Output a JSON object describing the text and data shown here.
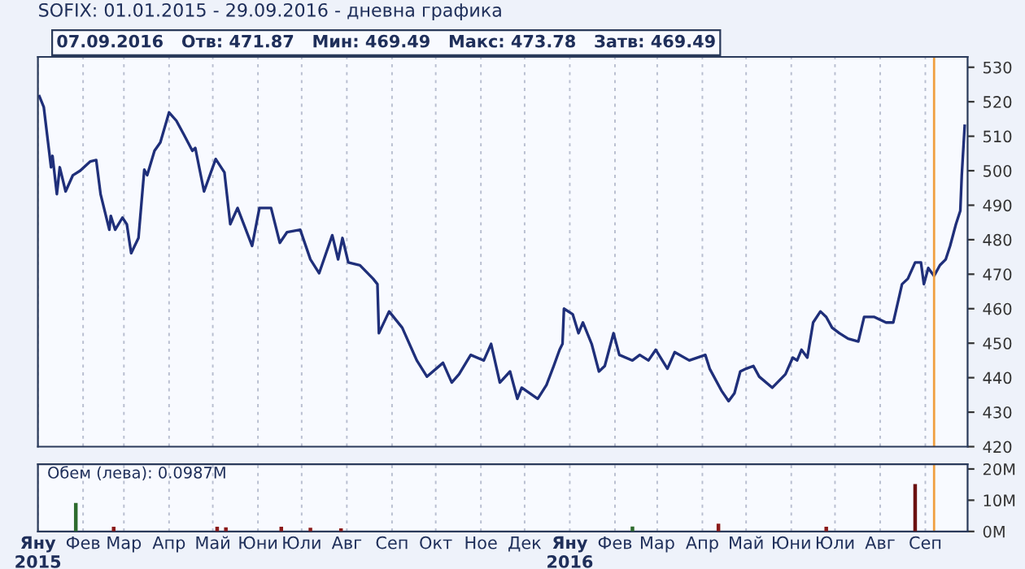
{
  "chart_data": [
    {
      "type": "line",
      "title": "SOFIX: 01.01.2015 - 29.09.2016 - дневна графика",
      "annotations": [
        "07.09.2016   Отв: 471.87   Мин: 469.49   Макс: 473.78   Затв: 469.49"
      ],
      "x": [
        "2015-01-02",
        "2015-01-05",
        "2015-01-10",
        "2015-01-11",
        "2015-01-14",
        "2015-01-16",
        "2015-01-20",
        "2015-01-25",
        "2015-01-30",
        "2015-02-06",
        "2015-02-10",
        "2015-02-13",
        "2015-02-19",
        "2015-02-20",
        "2015-02-23",
        "2015-02-28",
        "2015-03-03",
        "2015-03-06",
        "2015-03-11",
        "2015-03-15",
        "2015-03-17",
        "2015-03-22",
        "2015-03-26",
        "2015-04-01",
        "2015-04-06",
        "2015-04-11",
        "2015-04-17",
        "2015-04-19",
        "2015-04-25",
        "2015-05-03",
        "2015-05-09",
        "2015-05-13",
        "2015-05-18",
        "2015-05-28",
        "2015-06-02",
        "2015-06-10",
        "2015-06-16",
        "2015-06-21",
        "2015-06-30",
        "2015-07-07",
        "2015-07-13",
        "2015-07-22",
        "2015-07-26",
        "2015-07-29",
        "2015-08-02",
        "2015-08-10",
        "2015-08-19",
        "2015-08-22",
        "2015-08-23",
        "2015-08-30",
        "2015-09-08",
        "2015-09-18",
        "2015-09-25",
        "2015-10-06",
        "2015-10-12",
        "2015-10-17",
        "2015-10-25",
        "2015-11-03",
        "2015-11-08",
        "2015-11-14",
        "2015-11-21",
        "2015-11-26",
        "2015-11-29",
        "2015-12-10",
        "2015-12-16",
        "2015-12-21",
        "2015-12-25",
        "2015-12-27",
        "2015-12-28",
        "2016-01-03",
        "2016-01-07",
        "2016-01-10",
        "2016-01-16",
        "2016-01-21",
        "2016-01-25",
        "2016-01-31",
        "2016-02-04",
        "2016-02-13",
        "2016-02-18",
        "2016-02-24",
        "2016-02-29",
        "2016-03-08",
        "2016-03-13",
        "2016-03-23",
        "2016-04-03",
        "2016-04-06",
        "2016-04-14",
        "2016-04-19",
        "2016-04-23",
        "2016-04-27",
        "2016-05-01",
        "2016-05-06",
        "2016-05-10",
        "2016-05-19",
        "2016-05-28",
        "2016-06-02",
        "2016-06-05",
        "2016-06-08",
        "2016-06-12",
        "2016-06-16",
        "2016-06-21",
        "2016-06-25",
        "2016-06-29",
        "2016-07-04",
        "2016-07-10",
        "2016-07-17",
        "2016-07-21",
        "2016-07-28",
        "2016-08-05",
        "2016-08-10",
        "2016-08-16",
        "2016-08-20",
        "2016-08-25",
        "2016-08-29",
        "2016-08-31",
        "2016-09-03",
        "2016-09-07",
        "2016-09-11",
        "2016-09-15",
        "2016-09-18",
        "2016-09-22",
        "2016-09-25",
        "2016-09-26",
        "2016-09-28"
      ],
      "series": [
        {
          "color": "#1f2f7a",
          "values": [
            521.6,
            518.5,
            501,
            504.3,
            493.2,
            501,
            494,
            498.7,
            500,
            502.7,
            503.1,
            493.2,
            482.9,
            486.9,
            482.9,
            486.4,
            484.5,
            476.1,
            480.5,
            500.3,
            498.7,
            505.8,
            508.2,
            516.9,
            514.5,
            510.6,
            505.8,
            506.6,
            494,
            503.4,
            499.5,
            484.5,
            489.2,
            478.2,
            489.2,
            489.2,
            479.1,
            482.2,
            482.9,
            474.3,
            470.3,
            481.3,
            474.3,
            480.5,
            473.4,
            472.6,
            468.7,
            467.1,
            452.9,
            459.2,
            454.5,
            445,
            440.3,
            444.3,
            438.6,
            441,
            446.6,
            445,
            449.8,
            438.6,
            441.8,
            433.9,
            437.1,
            433.9,
            437.9,
            443.4,
            448.1,
            449.8,
            460,
            458.4,
            452.9,
            456,
            449.8,
            441.8,
            443.4,
            452.9,
            446.6,
            445,
            446.6,
            445,
            448.1,
            442.6,
            447.4,
            445,
            446.6,
            442.6,
            436.3,
            433.2,
            435.5,
            441.8,
            442.6,
            443.4,
            440.3,
            437.1,
            441,
            445.8,
            445,
            448.1,
            445.8,
            456,
            459.2,
            457.6,
            454.5,
            452.9,
            451.3,
            450.5,
            457.6,
            457.6,
            456,
            456,
            467.1,
            468.7,
            473.4,
            473.4,
            467.1,
            471.8,
            469.5,
            472.6,
            474.3,
            478.2,
            484.5,
            488.4,
            498.7,
            513
          ]
        }
      ],
      "xlim": [
        "2015-01-01",
        "2016-09-30"
      ],
      "ylim": [
        420,
        533
      ],
      "yticks": [
        420,
        430,
        440,
        450,
        460,
        470,
        480,
        490,
        500,
        510,
        520,
        530
      ],
      "grid": "x",
      "tick_labels": "y",
      "ref_lines": [
        {
          "axis": "x",
          "value": "2016-09-07",
          "color": "#f0a040"
        }
      ]
    },
    {
      "type": "bar",
      "annotations": [
        "Обем (лева): 0.0987M"
      ],
      "x": [
        "2015-01-27",
        "2015-02-22",
        "2015-05-04",
        "2015-05-10",
        "2015-06-17",
        "2015-07-07",
        "2015-07-28",
        "2016-02-13",
        "2016-04-12",
        "2016-06-25",
        "2016-08-25"
      ],
      "values": [
        9.1,
        1.5,
        1.5,
        1.3,
        1.5,
        1.2,
        1.0,
        1.6,
        2.5,
        1.5,
        15.2
      ],
      "colors": [
        "#2e6b2e",
        "#8b1a1a",
        "#8b1a1a",
        "#8b1a1a",
        "#8b1a1a",
        "#8b1a1a",
        "#8b1a1a",
        "#2e6b2e",
        "#8b1a1a",
        "#8b1a1a",
        "#6b1010"
      ],
      "xlim": [
        "2015-01-01",
        "2016-09-30"
      ],
      "ylim": [
        0,
        21.5
      ],
      "yticks": [
        {
          "value": 0,
          "label": "0M"
        },
        {
          "value": 10,
          "label": "10M"
        },
        {
          "value": 20,
          "label": "20M"
        }
      ],
      "xticks": [
        {
          "value": "2015-01-01",
          "label": "Яну\n2015"
        },
        {
          "value": "2015-02-01",
          "label": "Фев"
        },
        {
          "value": "2015-03-01",
          "label": "Мар"
        },
        {
          "value": "2015-04-01",
          "label": "Апр"
        },
        {
          "value": "2015-05-01",
          "label": "Май"
        },
        {
          "value": "2015-06-01",
          "label": "Юни"
        },
        {
          "value": "2015-07-01",
          "label": "Юли"
        },
        {
          "value": "2015-08-01",
          "label": "Авг"
        },
        {
          "value": "2015-09-01",
          "label": "Сеп"
        },
        {
          "value": "2015-10-01",
          "label": "Окт"
        },
        {
          "value": "2015-11-01",
          "label": "Ное"
        },
        {
          "value": "2015-12-01",
          "label": "Дек"
        },
        {
          "value": "2016-01-01",
          "label": "Яну\n2016"
        },
        {
          "value": "2016-02-01",
          "label": "Фев"
        },
        {
          "value": "2016-03-01",
          "label": "Мар"
        },
        {
          "value": "2016-04-01",
          "label": "Апр"
        },
        {
          "value": "2016-05-01",
          "label": "Май"
        },
        {
          "value": "2016-06-01",
          "label": "Юни"
        },
        {
          "value": "2016-07-01",
          "label": "Юли"
        },
        {
          "value": "2016-08-01",
          "label": "Авг"
        },
        {
          "value": "2016-09-01",
          "label": "Сеп"
        }
      ],
      "grid": "x",
      "ref_lines": [
        {
          "axis": "x",
          "value": "2016-09-07",
          "color": "#f0a040"
        }
      ]
    }
  ]
}
